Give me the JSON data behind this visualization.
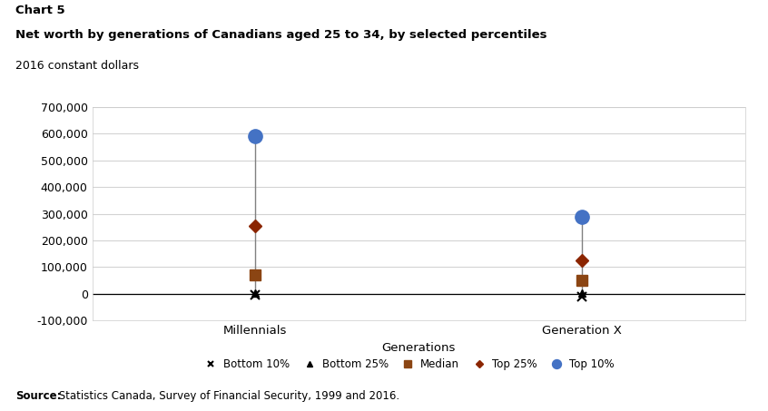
{
  "title_line1": "Chart 5",
  "title_line2": "Net worth by generations of Canadians aged 25 to 34, by selected percentiles",
  "subtitle": "2016 constant dollars",
  "xlabel": "Generations",
  "source_bold": "Source:",
  "source_rest": " Statistics Canada, Survey of Financial Security, 1999 and 2016.",
  "ylim": [
    -100000,
    700000
  ],
  "yticks": [
    -100000,
    0,
    100000,
    200000,
    300000,
    400000,
    500000,
    600000,
    700000
  ],
  "categories": [
    "Millennials",
    "Generation X"
  ],
  "x_positions": [
    1,
    2
  ],
  "series": {
    "bottom10": {
      "label": "Bottom 10%",
      "marker": "x",
      "color": "#000000",
      "markersize": 7,
      "markeredgewidth": 1.5,
      "values": [
        -5000,
        -12000
      ]
    },
    "bottom25": {
      "label": "Bottom 25%",
      "marker": "^",
      "color": "#000000",
      "markersize": 6,
      "markeredgewidth": 1.0,
      "values": [
        4000,
        2000
      ]
    },
    "median": {
      "label": "Median",
      "marker": "s",
      "color": "#8B4513",
      "markersize": 8,
      "markeredgewidth": 1.0,
      "values": [
        70000,
        50000
      ]
    },
    "top25": {
      "label": "Top 25%",
      "marker": "D",
      "color": "#8B2500",
      "markersize": 7,
      "markeredgewidth": 1.0,
      "values": [
        253000,
        126000
      ]
    },
    "top10": {
      "label": "Top 10%",
      "marker": "o",
      "color": "#4472C4",
      "markersize": 11,
      "markeredgewidth": 1.0,
      "values": [
        592000,
        287000
      ]
    }
  },
  "line_color": "#808080",
  "background_color": "#ffffff",
  "grid_color": "#d3d3d3"
}
